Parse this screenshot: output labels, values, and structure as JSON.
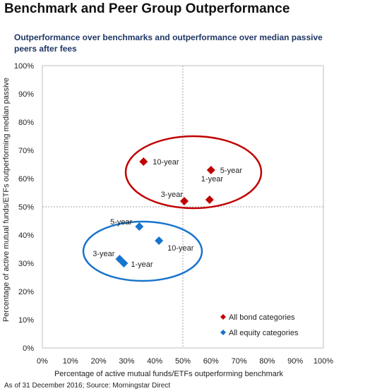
{
  "header": {
    "title": "Benchmark and Peer Group Outperformance",
    "subtitle": "Outperformance over benchmarks and outperformance over median passive peers after fees"
  },
  "footer": {
    "source": "As of 31 December 2016; Source: Morningstar Direct"
  },
  "chart_data": {
    "type": "scatter",
    "xlabel": "Percentage of active mutual funds/ETFs outperforming benchmark",
    "ylabel": "Percentage of active mutual funds/ETFs outperforming median passive",
    "xlim": [
      0,
      100
    ],
    "ylim": [
      0,
      100
    ],
    "x_ticks": [
      "0%",
      "10%",
      "20%",
      "30%",
      "40%",
      "50%",
      "60%",
      "70%",
      "80%",
      "90%",
      "100%"
    ],
    "y_ticks": [
      "0%",
      "10%",
      "20%",
      "30%",
      "40%",
      "50%",
      "60%",
      "70%",
      "80%",
      "90%",
      "100%"
    ],
    "reference_lines": {
      "x": 50,
      "y": 50
    },
    "legend_position": "bottom-right",
    "series": [
      {
        "name": "All bond categories",
        "color": "#c00000",
        "points": [
          {
            "label": "10-year",
            "x": 36,
            "y": 66
          },
          {
            "label": "5-year",
            "x": 60,
            "y": 63
          },
          {
            "label": "3-year",
            "x": 50.5,
            "y": 52
          },
          {
            "label": "1-year",
            "x": 59.5,
            "y": 52.5
          }
        ]
      },
      {
        "name": "All equity categories",
        "color": "#1874cd",
        "points": [
          {
            "label": "5-year",
            "x": 34.5,
            "y": 43
          },
          {
            "label": "10-year",
            "x": 41.5,
            "y": 38
          },
          {
            "label": "3-year",
            "x": 27.5,
            "y": 31.5
          },
          {
            "label": "1-year",
            "x": 29,
            "y": 30
          }
        ]
      }
    ]
  }
}
